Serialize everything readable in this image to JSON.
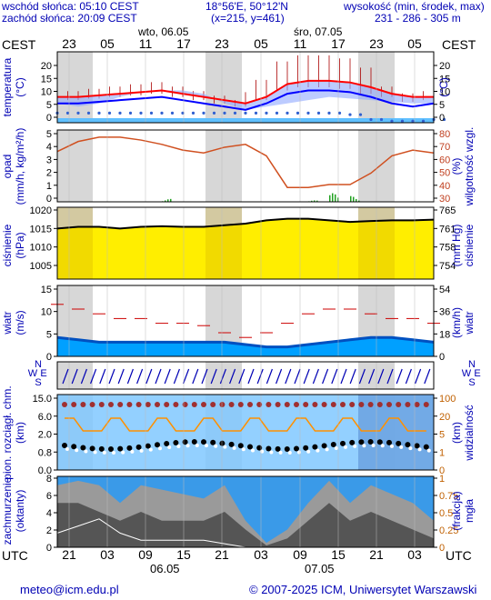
{
  "header": {
    "sunrise": "wschód słońca: 05:10 CEST",
    "sunset": "zachód słońca: 20:09 CEST",
    "coords": "18°56'E, 50°12'N",
    "grid": "(x=215,  y=461)",
    "altitude_label": "wysokość (min, środek, max)",
    "altitude_values": "231 - 286 - 305 m"
  },
  "top_axis": {
    "tz": "CEST",
    "day1": "wto, 06.05",
    "day2": "śro, 07.05",
    "hours": [
      "23",
      "05",
      "11",
      "17",
      "23",
      "05",
      "11",
      "17",
      "23",
      "05"
    ]
  },
  "bottom_axis": {
    "tz": "UTC",
    "hours": [
      "21",
      "03",
      "09",
      "15",
      "21",
      "03",
      "09",
      "15",
      "21",
      "03"
    ],
    "day1": "06.05",
    "day2": "07.05"
  },
  "panels": {
    "temperature": {
      "left_title": "temperatura",
      "left_unit": "(°C)",
      "right_title": "(°C)",
      "left_ticks": [
        "20",
        "15",
        "10",
        "5",
        "0"
      ],
      "right_ticks": [
        "20",
        "15",
        "10",
        "5",
        "0"
      ]
    },
    "precip": {
      "left_title": "opad",
      "left_unit": "(mm/h, kg/m²/h)",
      "right_title": "wilgotność wzgl.",
      "right_unit": "(%)",
      "left_ticks": [
        "5",
        "4",
        "3",
        "2",
        "1",
        "0"
      ],
      "right_ticks": [
        "80",
        "70",
        "60",
        "50",
        "40",
        "30"
      ]
    },
    "pressure": {
      "left_title": "ciśnienie",
      "left_unit": "(hPa)",
      "right_title": "ciśnienie",
      "right_unit": "(mm Hg)",
      "left_ticks": [
        "1020",
        "1015",
        "1010",
        "1005"
      ],
      "right_ticks": [
        "765",
        "761",
        "758",
        "754"
      ]
    },
    "wind": {
      "left_title": "wiatr",
      "left_unit": "(m/s)",
      "right_title": "wiatr",
      "right_unit": "(km/h)",
      "left_ticks": [
        "15",
        "10",
        "5",
        "0"
      ],
      "right_ticks": [
        "54",
        "36",
        "18",
        "0"
      ]
    },
    "direction": {
      "compass_left": [
        "N",
        "W",
        "E",
        "S"
      ],
      "compass_right": [
        "N",
        "W",
        "E",
        "S"
      ]
    },
    "visibility": {
      "left_title": "pion. rozciągł. chm.",
      "left_unit": "(km)",
      "right_title": "widzialność",
      "right_unit": "(km)",
      "left_ticks": [
        "15.0",
        "6.0",
        "2.0",
        "0.8",
        "0.0"
      ],
      "right_ticks": [
        "100",
        "20",
        "5",
        "1",
        "0"
      ]
    },
    "clouds": {
      "left_title": "zachmurzenie",
      "left_unit": "(oktanty)",
      "right_title": "mgła",
      "right_unit": "(frakcja)",
      "left_ticks": [
        "8",
        "6",
        "4",
        "2",
        "0"
      ],
      "right_ticks": [
        "1",
        "0.75",
        "0.5",
        "0.25",
        "0"
      ]
    }
  },
  "footer": {
    "email": "meteo@icm.edu.pl",
    "copyright": "© 2007-2025 ICM, Uniwersytet Warszawski"
  },
  "colors": {
    "night": "#d7d7d7",
    "temp_red": "#ff0000",
    "temp_blue": "#0000ff",
    "humidity": "#d05020",
    "pressure_fill": "#ffee00",
    "wind_fill": "#00a0ff",
    "wind_dark": "#0050c0",
    "sky": "#80c8ff"
  },
  "chart_data": [
    {
      "type": "line",
      "title": "temperatura",
      "ylabel": "(°C)",
      "ylim": [
        0,
        22
      ],
      "x_hours": [
        0,
        3,
        6,
        9,
        12,
        15,
        18,
        21,
        24,
        27,
        30,
        33,
        36,
        39,
        42,
        45,
        48,
        51,
        54
      ],
      "series": [
        {
          "name": "max",
          "values": [
            8,
            8,
            8.5,
            9,
            9.5,
            10,
            9,
            8,
            7,
            6,
            8,
            12,
            13,
            13,
            12.5,
            11,
            9,
            8,
            8
          ]
        },
        {
          "name": "temperatura",
          "values": [
            7,
            7,
            7.5,
            8,
            8.5,
            9,
            8,
            7,
            6,
            5,
            7,
            10,
            11,
            11,
            10.5,
            9,
            8,
            6.5,
            7
          ]
        },
        {
          "name": "min",
          "values": [
            6,
            6,
            6.5,
            7,
            7.5,
            8,
            7,
            6,
            5,
            4,
            6,
            9,
            10,
            10,
            9.5,
            8,
            6,
            5,
            6
          ]
        },
        {
          "name": "punkt rosy",
          "values": [
            3,
            3,
            3,
            3,
            3,
            3,
            3,
            3,
            3,
            3,
            3,
            3,
            3,
            3,
            2.5,
            1,
            0.5,
            0.5,
            1
          ]
        }
      ]
    },
    {
      "type": "line",
      "title": "opad / wilgotność wzgl.",
      "ylim_left": [
        0,
        5
      ],
      "ylim_right": [
        30,
        80
      ],
      "humidity": [
        65,
        72,
        75,
        75,
        73,
        70,
        66,
        64,
        68,
        70,
        62,
        40,
        40,
        42,
        42,
        50,
        62,
        66,
        64
      ],
      "precip": [
        0,
        0,
        0,
        0,
        0,
        0.2,
        0,
        0,
        0,
        0,
        0,
        0,
        0.1,
        0.6,
        0.4,
        0,
        0,
        0,
        0
      ]
    },
    {
      "type": "area",
      "title": "ciśnienie",
      "ylim": [
        1000,
        1020
      ],
      "values": [
        1015.5,
        1016,
        1016,
        1015.5,
        1016,
        1016.2,
        1016,
        1016,
        1016.5,
        1017,
        1018,
        1018.5,
        1018.5,
        1018,
        1017.5,
        1017.8,
        1018,
        1018,
        1018.2
      ]
    },
    {
      "type": "area",
      "title": "wiatr",
      "ylim": [
        0,
        15
      ],
      "mean": [
        4,
        3.5,
        3,
        3,
        3,
        3,
        3,
        3,
        3,
        2.5,
        2,
        2,
        2.5,
        3,
        3.5,
        4,
        4,
        3.5,
        3
      ],
      "gusts": [
        11,
        10,
        9,
        8,
        8,
        7,
        7,
        6.5,
        5,
        4,
        5,
        7,
        9,
        10,
        10,
        9,
        8,
        8,
        7
      ]
    },
    {
      "type": "scatter",
      "title": "widzialność / pion. rozciągł. chm.",
      "ylim": [
        0,
        15
      ],
      "visibility": [
        20,
        20,
        20,
        20,
        20,
        20,
        20,
        20,
        20,
        20,
        20,
        20,
        20,
        20,
        20,
        20,
        20,
        20,
        20
      ]
    },
    {
      "type": "area",
      "title": "zachmurzenie",
      "ylim": [
        0,
        8
      ],
      "total": [
        7,
        7.5,
        7,
        5,
        7,
        6.5,
        6,
        5.5,
        7,
        3,
        0.5,
        2,
        5,
        7.5,
        5,
        7,
        6,
        5,
        3
      ],
      "low": [
        5,
        5,
        4,
        3,
        4,
        3,
        3,
        3,
        4,
        2,
        0.2,
        1,
        3,
        5,
        3,
        4,
        3,
        2,
        1
      ],
      "fog": [
        0.2,
        0.3,
        0.4,
        0.2,
        0.1,
        0.1,
        0.1,
        0.1,
        0.05,
        0,
        0,
        0,
        0,
        0,
        0,
        0,
        0,
        0,
        0
      ]
    }
  ]
}
